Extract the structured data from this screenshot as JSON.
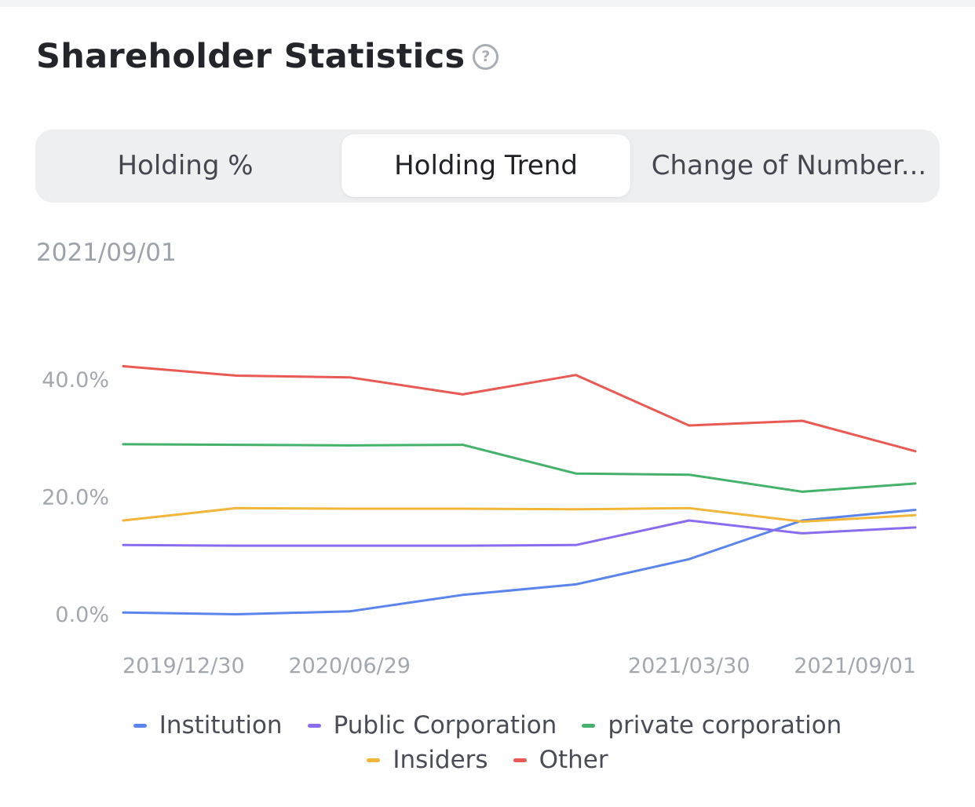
{
  "header": {
    "title": "Shareholder Statistics",
    "help_icon": "question-circle-icon",
    "help_glyph": "?"
  },
  "tabs": [
    {
      "label": "Holding %",
      "active": false
    },
    {
      "label": "Holding Trend",
      "active": true
    },
    {
      "label": "Change of Number...",
      "active": false
    }
  ],
  "selected_date": "2021/09/01",
  "colors": {
    "Institution": "#5b84ee",
    "Public Corporation": "#8a6cf0",
    "private corporation": "#44b26a",
    "Insiders": "#f1b63a",
    "Other": "#ea5a55",
    "axis_text": "#a3a7ae"
  },
  "chart_data": {
    "type": "line",
    "x": [
      "2019/12/30",
      "",
      "2020/06/29",
      "",
      "",
      "2021/03/30",
      "",
      "2021/09/01"
    ],
    "xtick_labels": [
      "2019/12/30",
      "2020/06/29",
      "2021/03/30",
      "2021/09/01"
    ],
    "ytick_labels": [
      "40.0%",
      "20.0%",
      "0.0%"
    ],
    "yticks": [
      40,
      20,
      0
    ],
    "ylim": [
      0,
      42
    ],
    "series": [
      {
        "name": "Institution",
        "values": [
          0.1,
          -0.2,
          0.3,
          3.1,
          4.9,
          9.2,
          15.8,
          17.6
        ]
      },
      {
        "name": "Public Corporation",
        "values": [
          11.6,
          11.5,
          11.5,
          11.5,
          11.6,
          15.8,
          13.6,
          14.6
        ]
      },
      {
        "name": "private corporation",
        "values": [
          28.8,
          28.7,
          28.6,
          28.7,
          23.8,
          23.6,
          20.7,
          22.1
        ]
      },
      {
        "name": "Insiders",
        "values": [
          15.8,
          17.9,
          17.8,
          17.8,
          17.7,
          17.9,
          15.6,
          16.7
        ]
      },
      {
        "name": "Other",
        "values": [
          42.1,
          40.5,
          40.2,
          37.3,
          40.6,
          32.0,
          32.8,
          27.6
        ]
      }
    ]
  },
  "legend": {
    "row1": [
      "Institution",
      "Public Corporation",
      "private corporation"
    ],
    "row2": [
      "Insiders",
      "Other"
    ]
  }
}
